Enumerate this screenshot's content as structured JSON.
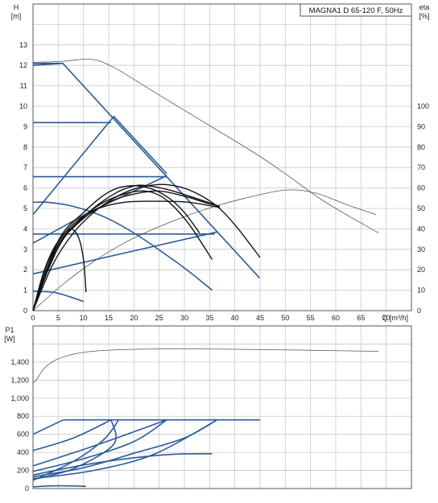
{
  "title": "MAGNA1 D 65-120 F, 50Hz",
  "colors": {
    "frame": "#555555",
    "grid": "#c8c8c8",
    "blue": "#2a5a9a",
    "black": "#111111",
    "thin": "#555555"
  },
  "chart_data": [
    {
      "type": "line",
      "name": "head-efficiency",
      "x_label": "Q [m³/h]",
      "y_label_top": "H",
      "y_label_unit": "[m]",
      "y2_label_top": "eta",
      "y2_label_unit": "[%]",
      "xlim": [
        0,
        75
      ],
      "ylim": [
        0,
        15
      ],
      "y2lim": [
        0,
        150
      ],
      "x_ticks": [
        0,
        5,
        10,
        15,
        20,
        25,
        30,
        35,
        40,
        45,
        50,
        55,
        60,
        65,
        70
      ],
      "y_ticks": [
        0,
        1,
        2,
        3,
        4,
        5,
        6,
        7,
        8,
        9,
        10,
        11,
        12,
        13
      ],
      "y2_ticks": [
        0,
        10,
        20,
        30,
        40,
        50,
        60,
        70,
        80,
        90,
        100
      ],
      "series": [
        {
          "style": "blue",
          "points": [
            [
              0,
              12.1
            ],
            [
              5.9,
              12.1
            ],
            [
              44.9,
              1.6
            ]
          ]
        },
        {
          "style": "blue",
          "points": [
            [
              0,
              12.0
            ],
            [
              5.9,
              12.1
            ]
          ]
        },
        {
          "style": "blue",
          "points": [
            [
              0,
              9.2
            ],
            [
              15.5,
              9.2
            ]
          ]
        },
        {
          "style": "blue",
          "points": [
            [
              0,
              6.55
            ],
            [
              26.5,
              6.55
            ]
          ]
        },
        {
          "style": "blue",
          "points": [
            [
              0,
              3.75
            ],
            [
              36,
              3.75
            ]
          ]
        },
        {
          "style": "blue",
          "points": [
            [
              0,
              4.7
            ],
            [
              16,
              9.5
            ],
            [
              26.5,
              6.7
            ]
          ]
        },
        {
          "style": "blue",
          "points": [
            [
              0,
              3.3
            ],
            [
              11,
              4.8
            ],
            [
              26.5,
              6.6
            ]
          ]
        },
        {
          "style": "blue",
          "points": [
            [
              0,
              1.8
            ],
            [
              36.5,
              3.85
            ]
          ]
        },
        {
          "style": "blue",
          "points": [
            [
              0,
              5.3
            ],
            [
              3,
              5.3
            ],
            [
              8,
              5.1
            ],
            [
              14,
              4.6
            ],
            [
              20,
              3.8
            ],
            [
              26,
              2.8
            ],
            [
              31,
              1.9
            ],
            [
              35.5,
              1.0
            ]
          ]
        },
        {
          "style": "blue",
          "points": [
            [
              0,
              0.95
            ],
            [
              4,
              0.9
            ],
            [
              7,
              0.7
            ],
            [
              10,
              0.45
            ]
          ]
        },
        {
          "style": "thin",
          "points": [
            [
              0,
              12.15
            ],
            [
              6,
              12.2
            ],
            [
              11.5,
              12.3
            ],
            [
              16,
              11.9
            ],
            [
              24,
              10.7
            ],
            [
              34,
              9.2
            ],
            [
              44,
              7.7
            ],
            [
              50,
              6.7
            ],
            [
              58,
              5.3
            ],
            [
              68.5,
              3.8
            ]
          ]
        },
        {
          "style": "thin",
          "points": [
            [
              0,
              0
            ],
            [
              6,
              1.3
            ],
            [
              12,
              2.4
            ],
            [
              18,
              3.3
            ],
            [
              24,
              4.0
            ],
            [
              30,
              4.6
            ],
            [
              36,
              5.1
            ],
            [
              42,
              5.5
            ],
            [
              50,
              5.9
            ],
            [
              56,
              5.75
            ],
            [
              62,
              5.2
            ],
            [
              68,
              4.7
            ]
          ]
        },
        {
          "style": "black",
          "points": [
            [
              0,
              0
            ],
            [
              4,
              2.3
            ],
            [
              8,
              3.8
            ],
            [
              12,
              4.8
            ],
            [
              16,
              5.5
            ],
            [
              20,
              5.95
            ],
            [
              24,
              6.15
            ],
            [
              27,
              6.15
            ],
            [
              31,
              5.9
            ],
            [
              36,
              5.2
            ],
            [
              40,
              4.2
            ],
            [
              45,
              2.6
            ]
          ]
        },
        {
          "style": "black",
          "points": [
            [
              0,
              0
            ],
            [
              3,
              2.0
            ],
            [
              6,
              3.5
            ],
            [
              10,
              4.6
            ],
            [
              14,
              5.3
            ],
            [
              18,
              5.7
            ],
            [
              21,
              5.85
            ],
            [
              24,
              5.75
            ],
            [
              27,
              5.3
            ],
            [
              31,
              4.2
            ],
            [
              35.5,
              2.5
            ]
          ]
        },
        {
          "style": "black",
          "points": [
            [
              0,
              0
            ],
            [
              2,
              1.8
            ],
            [
              4,
              3.0
            ],
            [
              6,
              3.7
            ],
            [
              7.5,
              4.0
            ],
            [
              9,
              3.6
            ],
            [
              10,
              2.5
            ],
            [
              10.5,
              0.9
            ]
          ]
        },
        {
          "style": "black",
          "points": [
            [
              0,
              0
            ],
            [
              3,
              2.4
            ],
            [
              7,
              4.0
            ],
            [
              12,
              4.9
            ],
            [
              18,
              5.3
            ],
            [
              25,
              5.35
            ],
            [
              31,
              5.3
            ],
            [
              37,
              5.05
            ]
          ]
        },
        {
          "style": "black",
          "points": [
            [
              0,
              0
            ],
            [
              4,
              2.8
            ],
            [
              9,
              4.3
            ],
            [
              15,
              5.3
            ],
            [
              20,
              5.7
            ],
            [
              25,
              5.85
            ],
            [
              30,
              5.6
            ],
            [
              34,
              5.3
            ],
            [
              37,
              5.1
            ]
          ]
        },
        {
          "style": "black",
          "points": [
            [
              0,
              0
            ],
            [
              5,
              3.2
            ],
            [
              11,
              4.8
            ],
            [
              16,
              5.7
            ],
            [
              20,
              6.1
            ],
            [
              23,
              6.1
            ],
            [
              27,
              5.9
            ],
            [
              31,
              5.6
            ],
            [
              37,
              5.1
            ]
          ]
        },
        {
          "style": "black",
          "points": [
            [
              0,
              0
            ],
            [
              5,
              3.4
            ],
            [
              10,
              4.8
            ],
            [
              15,
              5.8
            ],
            [
              19,
              6.1
            ],
            [
              23,
              6.0
            ],
            [
              27,
              5.5
            ],
            [
              30,
              4.8
            ],
            [
              33,
              3.8
            ]
          ]
        }
      ]
    },
    {
      "type": "line",
      "name": "power",
      "y_label_top": "P1",
      "y_label_unit": "[W]",
      "xlim": [
        0,
        75
      ],
      "ylim": [
        0,
        1800
      ],
      "y_ticks": [
        0,
        200,
        400,
        600,
        800
      ],
      "y_ticks_formatted": [
        "1,000",
        "1,200",
        "1,400"
      ],
      "y_ticks_formatted_values": [
        1000,
        1200,
        1400
      ],
      "series": [
        {
          "style": "thin",
          "points": [
            [
              0,
              1170
            ],
            [
              12,
              1520
            ],
            [
              68.5,
              1520
            ]
          ]
        },
        {
          "style": "blue",
          "points": [
            [
              6,
              760
            ],
            [
              45,
              760
            ]
          ]
        },
        {
          "style": "blue",
          "points": [
            [
              0,
              600
            ],
            [
              6,
              760
            ]
          ]
        },
        {
          "style": "blue",
          "points": [
            [
              0,
              420
            ],
            [
              8,
              560
            ],
            [
              15.5,
              760
            ]
          ]
        },
        {
          "style": "blue",
          "points": [
            [
              0,
              250
            ],
            [
              12,
              470
            ],
            [
              26.5,
              760
            ]
          ]
        },
        {
          "style": "blue",
          "points": [
            [
              0,
              190
            ],
            [
              10,
              330
            ],
            [
              20,
              520
            ],
            [
              26.5,
              760
            ]
          ]
        },
        {
          "style": "blue",
          "points": [
            [
              0,
              130
            ],
            [
              10,
              230
            ],
            [
              20,
              390
            ],
            [
              30,
              560
            ],
            [
              36.5,
              760
            ]
          ]
        },
        {
          "style": "blue",
          "points": [
            [
              0,
              110
            ],
            [
              12,
              200
            ],
            [
              24,
              380
            ],
            [
              36.5,
              760
            ]
          ]
        },
        {
          "style": "blue",
          "points": [
            [
              0,
              100
            ],
            [
              8,
              220
            ],
            [
              16,
              490
            ],
            [
              15.5,
              760
            ]
          ]
        },
        {
          "style": "blue",
          "points": [
            [
              0,
              150
            ],
            [
              10,
              260
            ],
            [
              20,
              340
            ],
            [
              28,
              380
            ],
            [
              35.5,
              385
            ]
          ]
        },
        {
          "style": "blue",
          "points": [
            [
              0,
              90
            ],
            [
              8,
              300
            ],
            [
              14,
              540
            ],
            [
              17,
              760
            ]
          ]
        },
        {
          "style": "blue",
          "points": [
            [
              0,
              20
            ],
            [
              5,
              30
            ],
            [
              10.5,
              25
            ]
          ]
        }
      ]
    }
  ]
}
